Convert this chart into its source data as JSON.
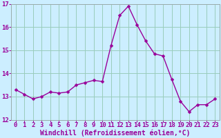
{
  "x": [
    0,
    1,
    2,
    3,
    4,
    5,
    6,
    7,
    8,
    9,
    10,
    11,
    12,
    13,
    14,
    15,
    16,
    17,
    18,
    19,
    20,
    21,
    22,
    23
  ],
  "y": [
    13.3,
    13.1,
    12.9,
    13.0,
    13.2,
    13.15,
    13.2,
    13.5,
    13.6,
    13.7,
    13.65,
    15.2,
    16.5,
    16.9,
    16.1,
    15.4,
    14.85,
    14.75,
    13.75,
    12.8,
    12.35,
    12.65,
    12.65,
    12.9
  ],
  "line_color": "#990099",
  "marker": "D",
  "marker_size": 2.5,
  "bg_color": "#cceeff",
  "grid_color": "#99ccbb",
  "xlabel": "Windchill (Refroidissement éolien,°C)",
  "xlabel_color": "#990099",
  "tick_color": "#990099",
  "spine_color": "#99aaaa",
  "ylim": [
    12,
    17
  ],
  "yticks": [
    12,
    13,
    14,
    15,
    16,
    17
  ],
  "xticks": [
    0,
    1,
    2,
    3,
    4,
    5,
    6,
    7,
    8,
    9,
    10,
    11,
    12,
    13,
    14,
    15,
    16,
    17,
    18,
    19,
    20,
    21,
    22,
    23
  ],
  "linewidth": 1.0,
  "tick_fontsize": 6.5,
  "xlabel_fontsize": 7.0
}
